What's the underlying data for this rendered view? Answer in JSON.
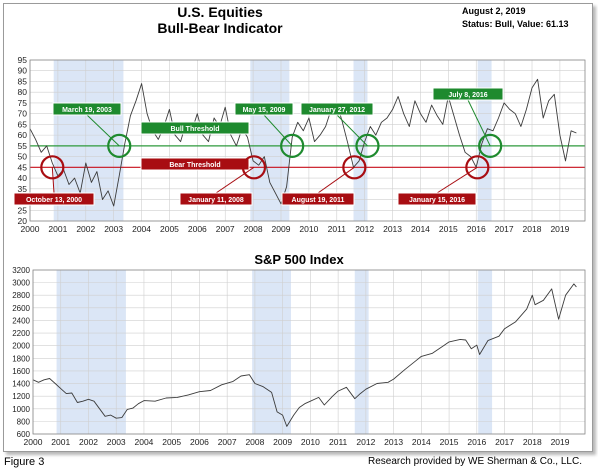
{
  "header": {
    "title": "U.S. Equities",
    "subtitle": "Bull-Bear Indicator",
    "date": "August 2, 2019",
    "status": "Status: Bull, Value: 61.13"
  },
  "footer": {
    "figure_label": "Figure 3",
    "credit": "Research provided by WE Sherman & Co., LLC."
  },
  "colors": {
    "bull_line": "#2e9a3c",
    "bear_line": "#c8101c",
    "bull_label": "#1e8a2e",
    "bear_label": "#a80d12",
    "shade": "#dbe6f6",
    "series": "#3c3c3c"
  },
  "chart_data": [
    {
      "type": "line",
      "title": "U.S. Equities Bull-Bear Indicator",
      "xlim": [
        2000,
        2019.9
      ],
      "ylim": [
        20,
        95
      ],
      "x_ticks": [
        "2000",
        "2001",
        "2002",
        "2003",
        "2004",
        "2005",
        "2006",
        "2007",
        "2008",
        "2009",
        "2010",
        "2011",
        "2012",
        "2013",
        "2014",
        "2015",
        "2016",
        "2017",
        "2018",
        "2019"
      ],
      "y_ticks": [
        20,
        25,
        30,
        35,
        40,
        45,
        50,
        55,
        60,
        65,
        70,
        75,
        80,
        85,
        90,
        95
      ],
      "grid": true,
      "thresholds": [
        {
          "label": "Bull Threshold",
          "value": 55
        },
        {
          "label": "Bear Threshold",
          "value": 45
        }
      ],
      "shaded_periods": [
        [
          2000.85,
          2003.35
        ],
        [
          2007.9,
          2009.3
        ],
        [
          2011.6,
          2012.1
        ],
        [
          2016.05,
          2016.55
        ]
      ],
      "annotations": [
        {
          "text": "March 19, 2003",
          "kind": "bull",
          "x": 2003.2,
          "y": 55
        },
        {
          "text": "October 13, 2000",
          "kind": "bear",
          "x": 2000.8,
          "y": 45
        },
        {
          "text": "January 11, 2008",
          "kind": "bear",
          "x": 2008.03,
          "y": 45
        },
        {
          "text": "May 15, 2009",
          "kind": "bull",
          "x": 2009.4,
          "y": 55
        },
        {
          "text": "January 27, 2012",
          "kind": "bull",
          "x": 2012.1,
          "y": 55
        },
        {
          "text": "August 19, 2011",
          "kind": "bear",
          "x": 2011.63,
          "y": 45
        },
        {
          "text": "July 8, 2016",
          "kind": "bull",
          "x": 2016.5,
          "y": 55
        },
        {
          "text": "January 15, 2016",
          "kind": "bear",
          "x": 2016.04,
          "y": 45
        }
      ],
      "series": [
        {
          "x": [
            2000.0,
            2000.2,
            2000.4,
            2000.6,
            2000.8,
            2001.0,
            2001.2,
            2001.4,
            2001.6,
            2001.8,
            2002.0,
            2002.2,
            2002.4,
            2002.6,
            2002.8,
            2003.0,
            2003.2,
            2003.4,
            2003.6,
            2003.8,
            2004.0,
            2004.2,
            2004.4,
            2004.6,
            2004.8,
            2005.0,
            2005.2,
            2005.4,
            2005.6,
            2005.8,
            2006.0,
            2006.2,
            2006.4,
            2006.6,
            2006.8,
            2007.0,
            2007.2,
            2007.4,
            2007.6,
            2007.8,
            2008.0,
            2008.2,
            2008.4,
            2008.6,
            2008.8,
            2009.0,
            2009.2,
            2009.4,
            2009.6,
            2009.8,
            2010.0,
            2010.2,
            2010.4,
            2010.6,
            2010.8,
            2011.0,
            2011.2,
            2011.4,
            2011.6,
            2011.8,
            2012.0,
            2012.2,
            2012.4,
            2012.6,
            2012.8,
            2013.0,
            2013.2,
            2013.4,
            2013.6,
            2013.8,
            2014.0,
            2014.2,
            2014.4,
            2014.6,
            2014.8,
            2015.0,
            2015.2,
            2015.4,
            2015.6,
            2015.8,
            2016.0,
            2016.2,
            2016.4,
            2016.6,
            2016.8,
            2017.0,
            2017.2,
            2017.4,
            2017.6,
            2017.8,
            2018.0,
            2018.2,
            2018.4,
            2018.6,
            2018.8,
            2019.0,
            2019.2,
            2019.4,
            2019.59
          ],
          "values": [
            63,
            58,
            52,
            55,
            47,
            41,
            44,
            37,
            40,
            33,
            47,
            38,
            43,
            30,
            34,
            27,
            41,
            56,
            69,
            76,
            84,
            70,
            62,
            58,
            64,
            72,
            60,
            57,
            66,
            62,
            70,
            60,
            57,
            68,
            64,
            73,
            60,
            55,
            63,
            59,
            48,
            46,
            50,
            38,
            33,
            28,
            36,
            59,
            66,
            62,
            68,
            57,
            60,
            64,
            72,
            75,
            66,
            56,
            45,
            48,
            57,
            64,
            60,
            66,
            68,
            72,
            78,
            70,
            64,
            76,
            70,
            66,
            74,
            69,
            65,
            78,
            69,
            60,
            52,
            50,
            45,
            56,
            63,
            62,
            68,
            75,
            72,
            70,
            64,
            72,
            82,
            86,
            68,
            76,
            79,
            60,
            48,
            62,
            61
          ]
        }
      ]
    },
    {
      "type": "line",
      "title": "S&P 500 Index",
      "xlim": [
        2000,
        2019.9
      ],
      "ylim": [
        600,
        3200
      ],
      "x_ticks": [
        "2000",
        "2001",
        "2002",
        "2003",
        "2004",
        "2005",
        "2006",
        "2007",
        "2008",
        "2009",
        "2010",
        "2011",
        "2012",
        "2013",
        "2014",
        "2015",
        "2016",
        "2017",
        "2018",
        "2019"
      ],
      "y_ticks": [
        600,
        800,
        1000,
        1200,
        1400,
        1600,
        1800,
        2000,
        2200,
        2400,
        2600,
        2800,
        3000,
        3200
      ],
      "grid": true,
      "shaded_periods": [
        [
          2000.85,
          2003.35
        ],
        [
          2007.9,
          2009.3
        ],
        [
          2011.6,
          2012.1
        ],
        [
          2016.05,
          2016.55
        ]
      ],
      "series": [
        {
          "x": [
            2000.0,
            2000.2,
            2000.4,
            2000.6,
            2000.8,
            2001.0,
            2001.2,
            2001.4,
            2001.6,
            2001.8,
            2002.0,
            2002.2,
            2002.4,
            2002.6,
            2002.8,
            2003.0,
            2003.2,
            2003.4,
            2003.6,
            2003.8,
            2004.0,
            2004.4,
            2004.8,
            2005.2,
            2005.6,
            2006.0,
            2006.4,
            2006.8,
            2007.2,
            2007.5,
            2007.8,
            2008.0,
            2008.3,
            2008.6,
            2008.8,
            2009.0,
            2009.15,
            2009.4,
            2009.6,
            2009.8,
            2010.0,
            2010.3,
            2010.5,
            2010.8,
            2011.0,
            2011.3,
            2011.6,
            2011.8,
            2012.0,
            2012.4,
            2012.8,
            2013.0,
            2013.4,
            2013.8,
            2014.0,
            2014.4,
            2014.8,
            2015.0,
            2015.4,
            2015.6,
            2015.8,
            2016.0,
            2016.1,
            2016.4,
            2016.8,
            2017.0,
            2017.4,
            2017.8,
            2018.0,
            2018.1,
            2018.4,
            2018.7,
            2018.95,
            2019.2,
            2019.5,
            2019.59
          ],
          "values": [
            1460,
            1420,
            1460,
            1480,
            1400,
            1320,
            1240,
            1250,
            1100,
            1120,
            1150,
            1120,
            1000,
            880,
            900,
            850,
            860,
            990,
            1010,
            1080,
            1130,
            1120,
            1170,
            1180,
            1220,
            1270,
            1290,
            1380,
            1430,
            1520,
            1540,
            1400,
            1350,
            1260,
            950,
            900,
            720,
            900,
            1020,
            1080,
            1120,
            1180,
            1060,
            1200,
            1280,
            1340,
            1160,
            1240,
            1310,
            1400,
            1420,
            1470,
            1620,
            1760,
            1830,
            1880,
            2000,
            2060,
            2100,
            2090,
            1950,
            2010,
            1860,
            2080,
            2150,
            2270,
            2380,
            2580,
            2800,
            2650,
            2720,
            2900,
            2420,
            2800,
            2980,
            2932
          ]
        }
      ]
    }
  ]
}
